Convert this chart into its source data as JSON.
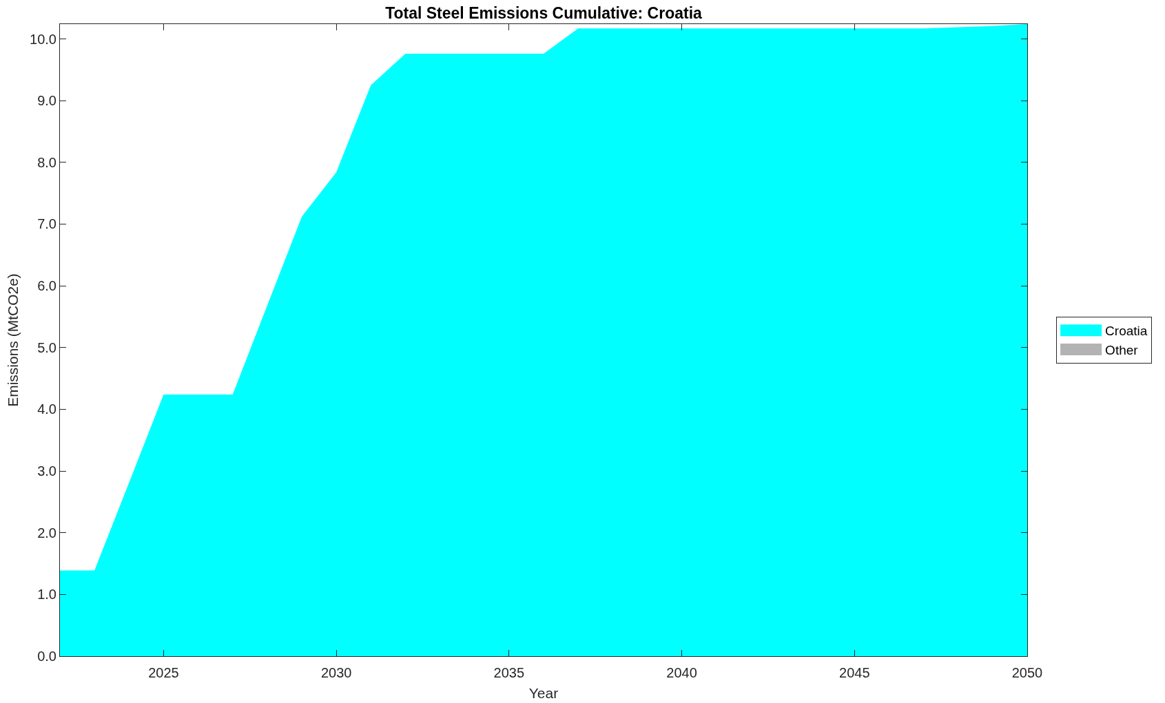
{
  "chart_data": {
    "type": "area",
    "title": "Total Steel Emissions Cumulative: Croatia",
    "xlabel": "Year",
    "ylabel": "Emissions (MtCO2e)",
    "x": [
      2022,
      2023,
      2024,
      2025,
      2026,
      2027,
      2028,
      2029,
      2030,
      2031,
      2032,
      2033,
      2034,
      2035,
      2036,
      2037,
      2038,
      2039,
      2040,
      2041,
      2042,
      2043,
      2044,
      2045,
      2046,
      2047,
      2048,
      2049,
      2050
    ],
    "series": [
      {
        "name": "Croatia",
        "color": "#00ffff",
        "values": [
          1.39,
          1.39,
          2.81,
          4.24,
          4.24,
          4.24,
          5.68,
          7.12,
          7.84,
          9.25,
          9.76,
          9.76,
          9.76,
          9.76,
          9.76,
          10.17,
          10.17,
          10.17,
          10.17,
          10.17,
          10.17,
          10.17,
          10.17,
          10.17,
          10.17,
          10.17,
          10.19,
          10.21,
          10.24
        ]
      },
      {
        "name": "Other",
        "color": "#b3b3b3",
        "values": [
          null,
          null,
          null,
          null,
          null,
          null,
          null,
          null,
          null,
          null,
          null,
          null,
          null,
          null,
          null,
          null,
          null,
          null,
          null,
          null,
          null,
          null,
          null,
          null,
          null,
          null,
          null,
          null,
          null
        ]
      }
    ],
    "xlim": [
      2022,
      2050
    ],
    "xticks": [
      2025,
      2030,
      2035,
      2040,
      2045,
      2050
    ],
    "ylim": [
      0,
      10.24
    ],
    "yticks": [
      {
        "value": 0,
        "label": "0.0"
      },
      {
        "value": 1,
        "label": "1.0"
      },
      {
        "value": 2,
        "label": "2.0"
      },
      {
        "value": 3,
        "label": "3.0"
      },
      {
        "value": 4,
        "label": "4.0"
      },
      {
        "value": 5,
        "label": "5.0"
      },
      {
        "value": 6,
        "label": "6.0"
      },
      {
        "value": 7,
        "label": "7.0"
      },
      {
        "value": 8,
        "label": "8.0"
      },
      {
        "value": 9,
        "label": "9.0"
      },
      {
        "value": 10,
        "label": "10.0"
      }
    ],
    "legend": "right"
  }
}
